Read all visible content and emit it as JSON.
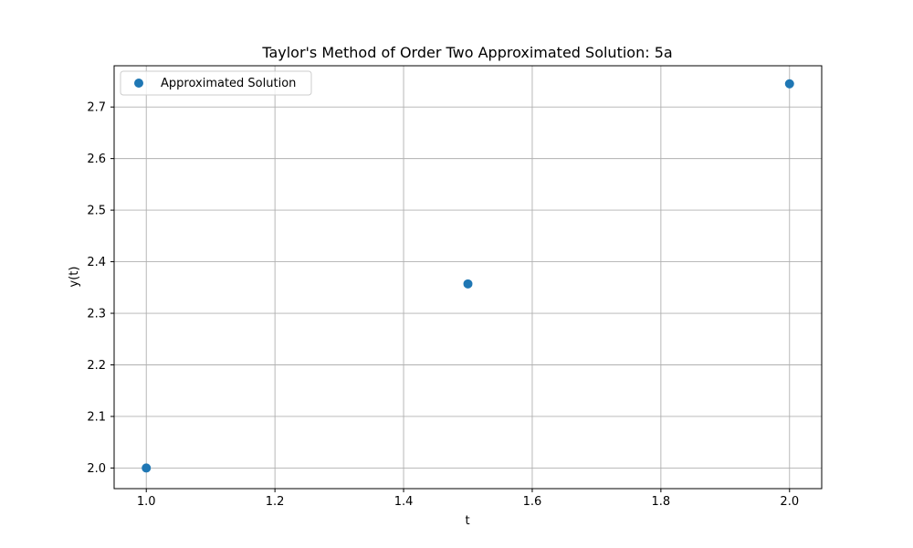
{
  "chart_data": {
    "type": "scatter",
    "title": "Taylor's Method of Order Two Approximated Solution: 5a",
    "xlabel": "t",
    "ylabel": "y(t)",
    "xlim": [
      0.95,
      2.05
    ],
    "ylim": [
      1.96,
      2.78
    ],
    "xticks": [
      1.0,
      1.2,
      1.4,
      1.6,
      1.8,
      2.0
    ],
    "xtick_labels": [
      "1.0",
      "1.2",
      "1.4",
      "1.6",
      "1.8",
      "2.0"
    ],
    "yticks": [
      2.0,
      2.1,
      2.2,
      2.3,
      2.4,
      2.5,
      2.6,
      2.7
    ],
    "ytick_labels": [
      "2.0",
      "2.1",
      "2.2",
      "2.3",
      "2.4",
      "2.5",
      "2.6",
      "2.7"
    ],
    "grid": true,
    "legend_position": "top-left",
    "series": [
      {
        "name": "Approximated Solution",
        "color": "#1f77b4",
        "marker": "circle",
        "x": [
          1.0,
          1.5,
          2.0
        ],
        "y": [
          2.0,
          2.357,
          2.745
        ]
      }
    ]
  }
}
